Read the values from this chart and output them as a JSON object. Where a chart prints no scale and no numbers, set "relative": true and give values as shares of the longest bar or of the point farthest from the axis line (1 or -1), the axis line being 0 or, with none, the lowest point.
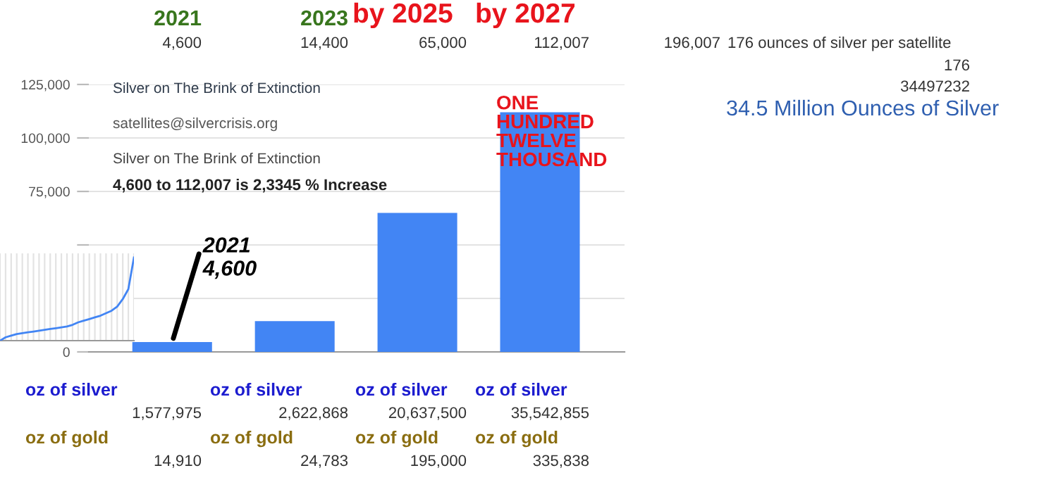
{
  "chart_data": [
    {
      "type": "bar",
      "categories": [
        null,
        null,
        null,
        null
      ],
      "values": [
        4600,
        14400,
        65000,
        112007
      ],
      "color": "#4285f4",
      "ylim": [
        0,
        125000
      ],
      "yticks": [
        0,
        {
          "value": 25000,
          "label": null
        },
        {
          "value": 50000,
          "label": null
        },
        {
          "value": 75000,
          "label": "75,000"
        },
        {
          "value": 100000,
          "label": "100,000"
        },
        {
          "value": 125000,
          "label": "125,000"
        }
      ],
      "grid": "y",
      "annotations": [
        "2021",
        "2023",
        "by 2025",
        "by 2027",
        "4,600",
        "14,400",
        "65,000",
        "112,007",
        "196,007",
        "176 ounces of silver per satellite",
        "176",
        "34497232",
        "34.5 Million Ounces of Silver",
        "Silver on The Brink of Extinction",
        "satellites@silvercrisis.org",
        "Silver on The Brink of Extinction",
        "4,600 to 112,007 is 2,3345 % Increase",
        "ONE\nHUNDRED\nTWELVE\nTHOUSAND",
        "2021\n4,600",
        "oz of silver",
        "oz of silver",
        "oz of silver",
        "oz of silver",
        "1,577,975",
        "2,622,868",
        "20,637,500",
        "35,542,855",
        "oz of gold",
        "oz of gold",
        "oz of gold",
        "oz of gold",
        "14,910",
        "24,783",
        "195,000",
        "335,838"
      ]
    },
    {
      "type": "line",
      "relative": true,
      "color": "#4285f4",
      "grid": "x",
      "categories": [
        null,
        null,
        null,
        null,
        null,
        null,
        null,
        null,
        null,
        null,
        null,
        null,
        null,
        null,
        null,
        null,
        null,
        null,
        null,
        null,
        null,
        null,
        null,
        null,
        null
      ],
      "values": [
        0.0,
        0.04,
        0.06,
        0.08,
        0.09,
        0.1,
        0.11,
        0.12,
        0.13,
        0.14,
        0.15,
        0.16,
        0.17,
        0.19,
        0.22,
        0.24,
        0.26,
        0.28,
        0.3,
        0.33,
        0.36,
        0.41,
        0.5,
        0.62,
        1.0
      ]
    }
  ]
}
